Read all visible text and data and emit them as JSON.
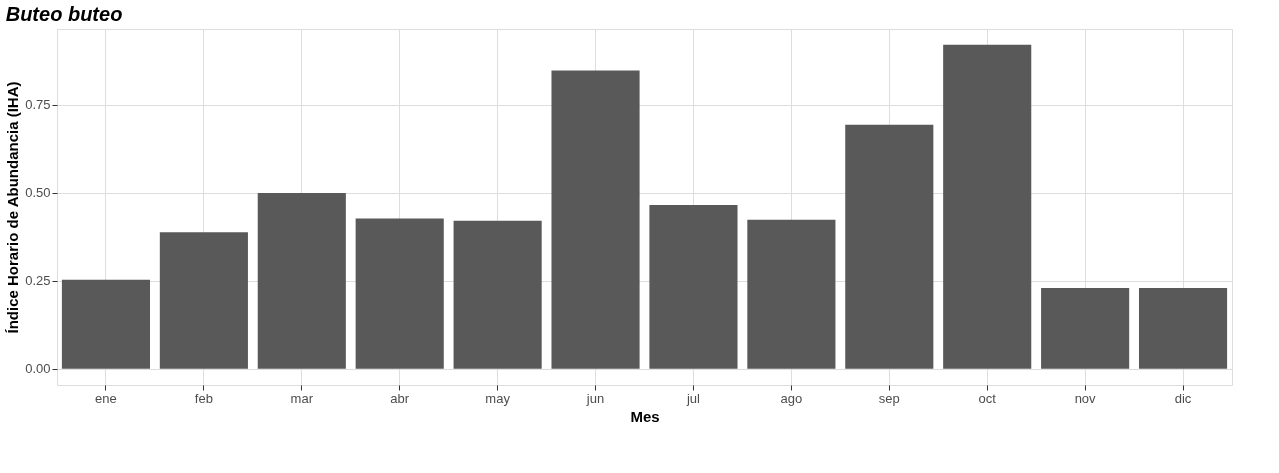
{
  "chart_data": {
    "type": "bar",
    "title": "Buteo buteo",
    "xlabel": "Mes",
    "ylabel": "Índice Horario de Abundancia (IHA)",
    "categories": [
      "ene",
      "feb",
      "mar",
      "abr",
      "may",
      "jun",
      "jul",
      "ago",
      "sep",
      "oct",
      "nov",
      "dic"
    ],
    "values": [
      0.253,
      0.388,
      0.5,
      0.427,
      0.421,
      0.848,
      0.466,
      0.424,
      0.694,
      0.921,
      0.23,
      0.23
    ],
    "color": "#595959",
    "ylim": [
      -0.046,
      0.966
    ],
    "yticks": [
      {
        "value": 0,
        "label": "0.00"
      },
      {
        "value": 0.25,
        "label": "0.25"
      },
      {
        "value": 0.5,
        "label": "0.50"
      },
      {
        "value": 0.75,
        "label": "0.75"
      }
    ],
    "grid": true
  }
}
